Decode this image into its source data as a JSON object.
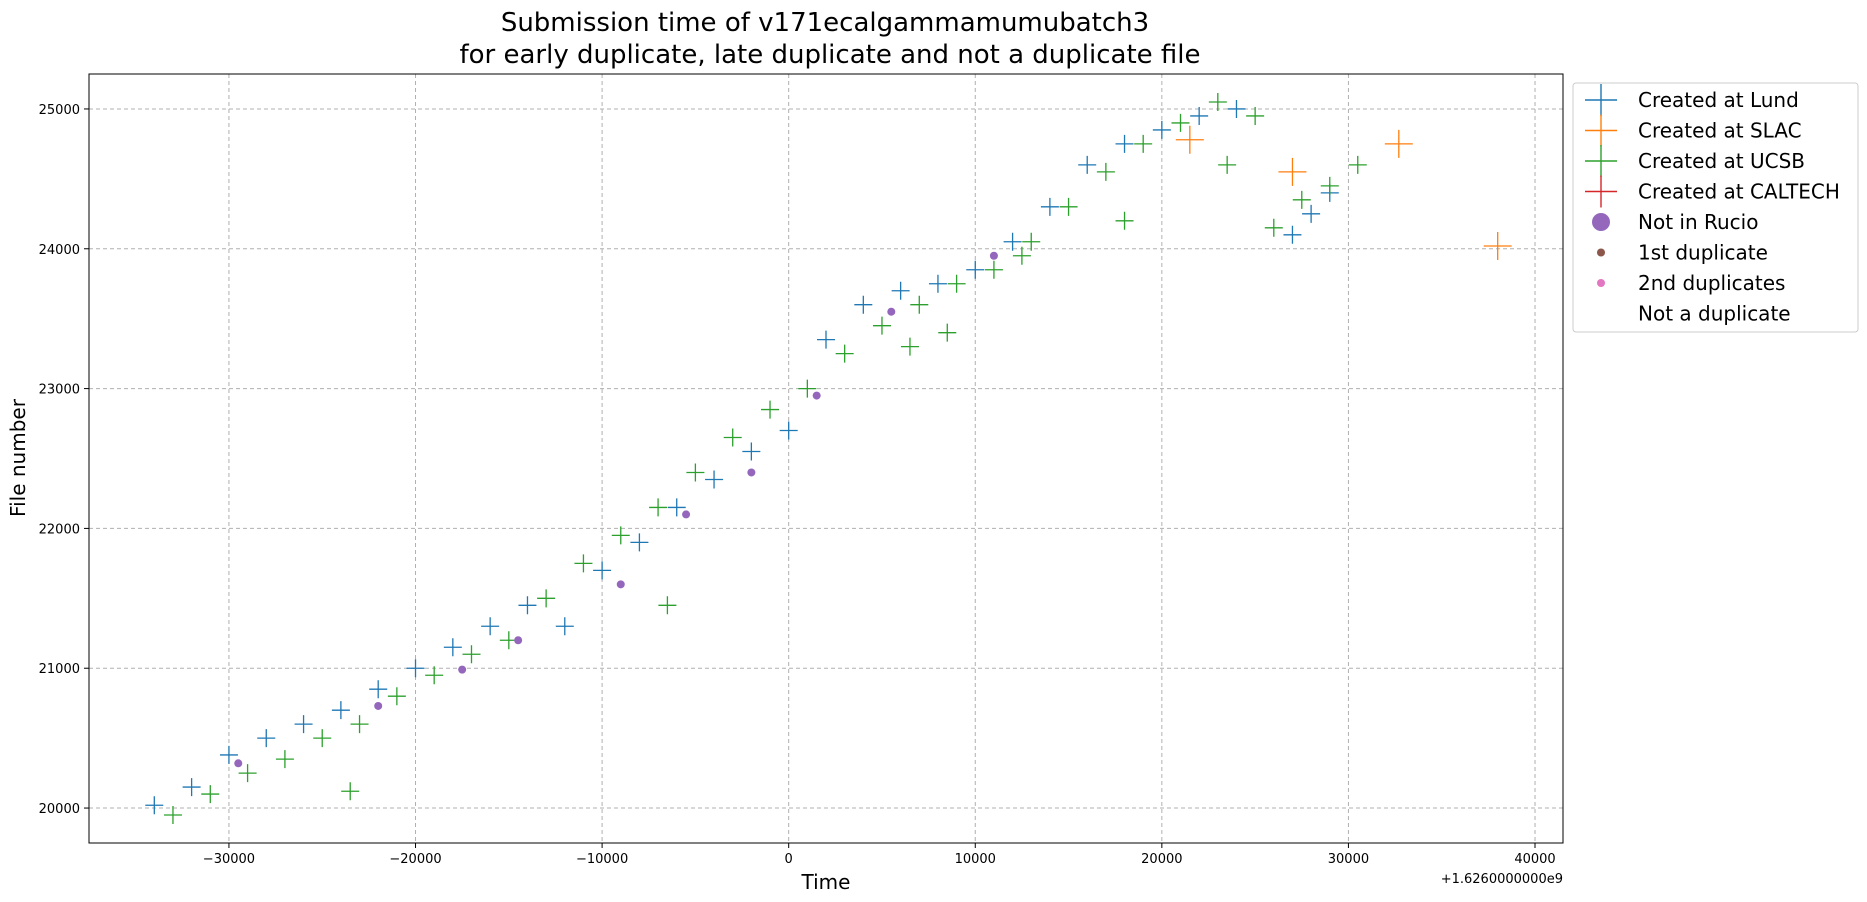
{
  "chart_data": {
    "type": "scatter",
    "title_line1": "Submission time of v171ecalgammamumubatch3",
    "title_line2": "for early duplicate, late duplicate and not a duplicate file",
    "xlabel": "Time",
    "ylabel": "File number",
    "x_offset_label": "+1.6260000000e9",
    "xlim": [
      -37500,
      41500
    ],
    "ylim": [
      19750,
      25250
    ],
    "x_ticks": [
      -30000,
      -20000,
      -10000,
      0,
      10000,
      20000,
      30000,
      40000
    ],
    "x_tick_labels": [
      "−30000",
      "−20000",
      "−10000",
      "0",
      "10000",
      "20000",
      "30000",
      "40000"
    ],
    "y_ticks": [
      20000,
      21000,
      22000,
      23000,
      24000,
      25000
    ],
    "y_tick_labels": [
      "20000",
      "21000",
      "22000",
      "23000",
      "24000",
      "25000"
    ],
    "grid": true,
    "legend_position": "outside-right",
    "colors": {
      "lund": "#1f77b4",
      "slac": "#ff7f0e",
      "ucsb": "#2ca02c",
      "caltech": "#d62728",
      "not_in_rucio": "#9467bd",
      "first_dup": "#8c564b",
      "second_dup": "#e377c2"
    },
    "legend": [
      {
        "label": "Created at Lund",
        "marker": "plus",
        "color": "#1f77b4"
      },
      {
        "label": "Created at SLAC",
        "marker": "plus",
        "color": "#ff7f0e"
      },
      {
        "label": "Created at UCSB",
        "marker": "plus",
        "color": "#2ca02c"
      },
      {
        "label": "Created at CALTECH",
        "marker": "plus",
        "color": "#d62728"
      },
      {
        "label": "Not in Rucio",
        "marker": "circle-large",
        "color": "#9467bd"
      },
      {
        "label": "1st duplicate",
        "marker": "circle-small",
        "color": "#8c564b"
      },
      {
        "label": "2nd duplicates",
        "marker": "circle-small",
        "color": "#e377c2"
      },
      {
        "label": "Not a duplicate",
        "marker": "none",
        "color": "#ffffff"
      }
    ],
    "series": [
      {
        "name": "Created at Lund",
        "color": "#1f77b4",
        "x": [
          -34000,
          -32000,
          -30000,
          -28000,
          -26000,
          -24000,
          -22000,
          -20000,
          -18000,
          -16000,
          -14000,
          -12000,
          -10000,
          -8000,
          -6000,
          -4000,
          -2000,
          0,
          2000,
          4000,
          6000,
          8000,
          10000,
          12000,
          14000,
          16000,
          18000,
          20000,
          22000,
          24000,
          27000,
          28000,
          29000
        ],
        "y": [
          20020,
          20150,
          20380,
          20500,
          20600,
          20700,
          20850,
          21000,
          21150,
          21300,
          21450,
          21300,
          21700,
          21900,
          22150,
          22350,
          22550,
          22700,
          23350,
          23600,
          23700,
          23750,
          23850,
          24050,
          24300,
          24600,
          24750,
          24850,
          24950,
          25000,
          24100,
          24250,
          24400
        ]
      },
      {
        "name": "Created at SLAC",
        "color": "#ff7f0e",
        "x": [
          21500,
          27000,
          32700,
          38000
        ],
        "y": [
          24780,
          24550,
          24750,
          24020
        ]
      },
      {
        "name": "Created at UCSB",
        "color": "#2ca02c",
        "x": [
          -33000,
          -31000,
          -29000,
          -27000,
          -25000,
          -23000,
          -21000,
          -19000,
          -17000,
          -15000,
          -13000,
          -11000,
          -9000,
          -7000,
          -5000,
          -3000,
          -1000,
          1000,
          3000,
          5000,
          7000,
          9000,
          11000,
          13000,
          15000,
          17000,
          19000,
          21000,
          23000,
          25000,
          26000,
          27500,
          29000,
          30500,
          -23500,
          -6500,
          6500,
          8500,
          12500,
          18000,
          23500
        ],
        "y": [
          19950,
          20100,
          20250,
          20350,
          20500,
          20600,
          20800,
          20950,
          21100,
          21200,
          21500,
          21750,
          21950,
          22150,
          22400,
          22650,
          22850,
          23000,
          23250,
          23450,
          23600,
          23750,
          23850,
          24050,
          24300,
          24550,
          24750,
          24900,
          25050,
          24950,
          24150,
          24350,
          24450,
          24600,
          20120,
          21450,
          23300,
          23400,
          23950,
          24200,
          24600
        ]
      },
      {
        "name": "Not in Rucio",
        "color": "#9467bd",
        "x": [
          -29500,
          -22000,
          -17500,
          -14500,
          -9000,
          -5500,
          -2000,
          1500,
          5500,
          11000
        ],
        "y": [
          20320,
          20730,
          20990,
          21200,
          21600,
          22100,
          22400,
          22950,
          23550,
          23950
        ]
      }
    ]
  }
}
